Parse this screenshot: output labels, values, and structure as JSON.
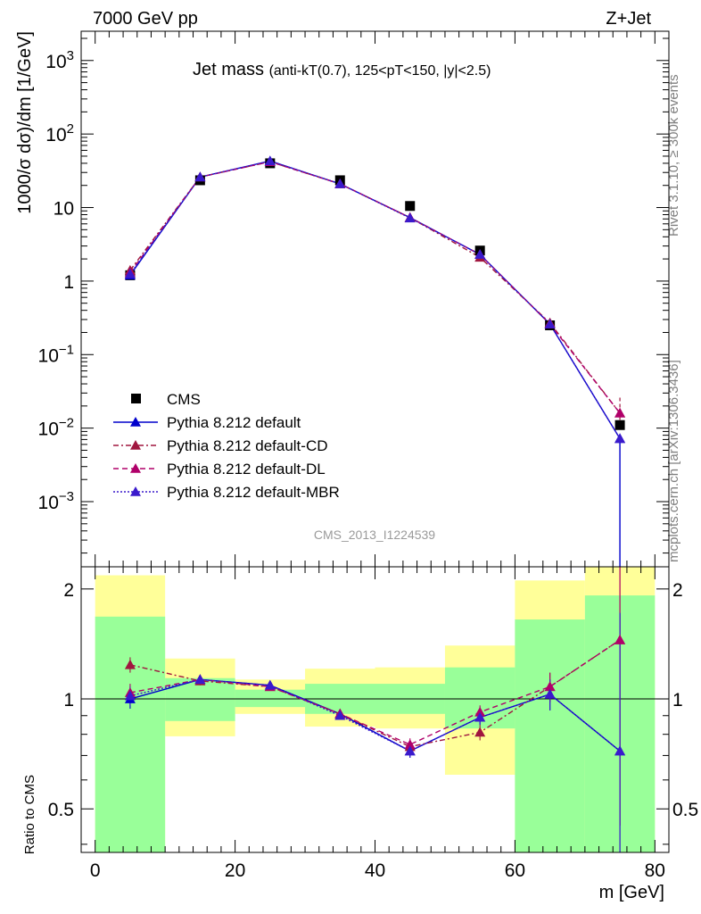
{
  "header": {
    "left": "7000 GeV pp",
    "right": "Z+Jet"
  },
  "side_text": {
    "rivet": "Rivet 3.1.10, ≥ 300k events",
    "mcplots": "mcplots.cern.ch [arXiv:1306.3436]"
  },
  "analysis_id": "CMS_2013_I1224539",
  "chart_data": [
    {
      "type": "line",
      "panel": "main",
      "title": "Jet mass",
      "subtitle": "(anti-k_T(0.7), 125<p_T<150, |y|<2.5)",
      "xlabel": "m [GeV]",
      "ylabel": "1000/σ dσ)/dm [1/GeV]",
      "log_y": true,
      "xlim": [
        -2,
        82
      ],
      "ylim": [
        0.00013,
        2500
      ],
      "y_tick_labels": [
        "10^-3",
        "10^-2",
        "10^-1",
        "1",
        "10",
        "10^2",
        "10^3"
      ],
      "legend_position": "lower-left",
      "bins": [
        [
          0,
          10
        ],
        [
          10,
          20
        ],
        [
          20,
          30
        ],
        [
          30,
          40
        ],
        [
          40,
          50
        ],
        [
          50,
          60
        ],
        [
          60,
          70
        ],
        [
          70,
          80
        ]
      ],
      "x": [
        5,
        15,
        25,
        35,
        45,
        55,
        65,
        75
      ],
      "series": [
        {
          "name": "CMS",
          "color": "#000000",
          "marker": "square",
          "line": "none",
          "values": [
            1.2,
            23.5,
            40,
            23.5,
            10.5,
            2.6,
            0.25,
            0.011
          ]
        },
        {
          "name": "Pythia 8.212 default",
          "color": "#0000cc",
          "marker": "triangle",
          "line": "solid",
          "values": [
            1.2,
            26,
            43,
            21,
            7.3,
            2.3,
            0.26,
            0.0072
          ]
        },
        {
          "name": "Pythia 8.212 default-CD",
          "color": "#a0163f",
          "marker": "triangle",
          "line": "dashdot",
          "values": [
            1.4,
            26,
            42,
            21,
            7.3,
            2.1,
            0.27,
            0.016
          ]
        },
        {
          "name": "Pythia 8.212 default-DL",
          "color": "#b0006a",
          "marker": "triangle",
          "line": "dashed",
          "values": [
            1.3,
            26,
            42,
            21,
            7.3,
            2.3,
            0.26,
            0.016
          ]
        },
        {
          "name": "Pythia 8.212 default-MBR",
          "color": "#3a1acc",
          "marker": "triangle",
          "line": "dotted",
          "values": [
            1.25,
            26,
            43,
            21,
            7.2,
            2.3,
            0.26,
            0.0072
          ]
        }
      ]
    },
    {
      "type": "line",
      "panel": "ratio",
      "xlabel": "m [GeV]",
      "ylabel": "Ratio to CMS",
      "log_y": true,
      "xlim": [
        -2,
        82
      ],
      "ylim": [
        0.38,
        2.3
      ],
      "x_ticks": [
        0,
        20,
        40,
        60,
        80
      ],
      "y_ticks": [
        0.5,
        1,
        2
      ],
      "bins": [
        [
          0,
          10
        ],
        [
          10,
          20
        ],
        [
          20,
          30
        ],
        [
          30,
          40
        ],
        [
          40,
          50
        ],
        [
          50,
          60
        ],
        [
          60,
          70
        ],
        [
          70,
          80
        ]
      ],
      "x": [
        5,
        15,
        25,
        35,
        45,
        55,
        65,
        75
      ],
      "band_stat": [
        [
          0.38,
          1.68
        ],
        [
          0.87,
          1.14
        ],
        [
          0.95,
          1.06
        ],
        [
          0.91,
          1.1
        ],
        [
          0.91,
          1.1
        ],
        [
          0.83,
          1.22
        ],
        [
          0.38,
          1.65
        ],
        [
          0.38,
          1.92
        ]
      ],
      "band_total": [
        [
          0.38,
          2.18
        ],
        [
          0.79,
          1.29
        ],
        [
          0.91,
          1.13
        ],
        [
          0.84,
          1.21
        ],
        [
          0.83,
          1.22
        ],
        [
          0.62,
          1.4
        ],
        [
          0.37,
          2.11
        ],
        [
          0.37,
          2.3
        ]
      ],
      "series": [
        {
          "name": "Pythia 8.212 default",
          "color": "#0000cc",
          "values": [
            1.0,
            1.13,
            1.09,
            0.91,
            0.72,
            0.89,
            1.03,
            0.72
          ]
        },
        {
          "name": "Pythia 8.212 default-CD",
          "color": "#a0163f",
          "values": [
            1.24,
            1.12,
            1.08,
            0.91,
            0.74,
            0.81,
            1.08,
            1.45
          ]
        },
        {
          "name": "Pythia 8.212 default-DL",
          "color": "#b0006a",
          "values": [
            1.04,
            1.13,
            1.08,
            0.91,
            0.75,
            0.92,
            1.08,
            1.45
          ]
        },
        {
          "name": "Pythia 8.212 default-MBR",
          "color": "#3a1acc",
          "values": [
            1.02,
            1.13,
            1.09,
            0.9,
            0.72,
            0.89,
            1.03,
            0.72
          ]
        }
      ]
    }
  ],
  "colors": {
    "band_total": "#ffff99",
    "band_stat": "#99ff99"
  }
}
